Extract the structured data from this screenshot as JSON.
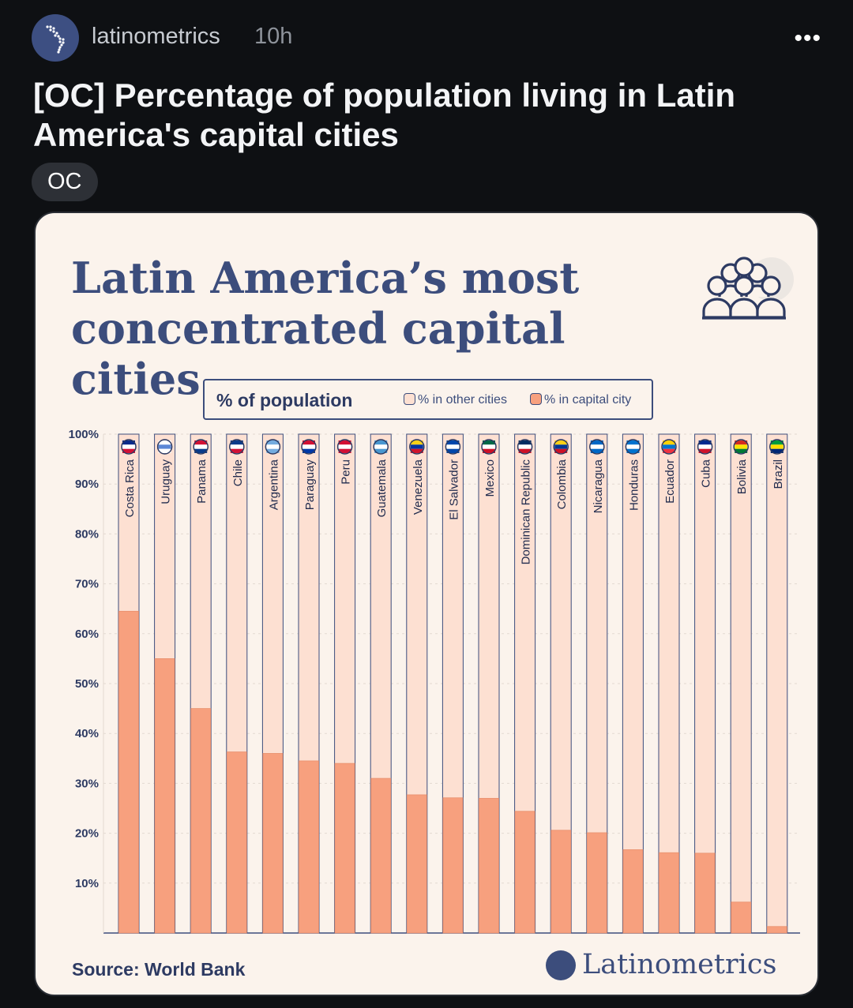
{
  "post": {
    "author": "latinometrics",
    "time": "10h",
    "menu_icon": "more-horizontal-icon",
    "more_label": "•••",
    "title": "[OC] Percentage of population living in Latin America's capital cities",
    "flair": "OC"
  },
  "infographic": {
    "title": "Latin America’s most concentrated capital cities",
    "icon": "people-group-icon",
    "legend": {
      "title": "% of population",
      "other_label": "% in other cities",
      "capital_label": "% in capital city"
    },
    "source": "Source: World Bank",
    "brand": "Latinometrics"
  },
  "colors": {
    "capital": "#f7a07e",
    "other": "#fde0d2",
    "navy": "#3c4d7c",
    "background": "#fbf3ec",
    "page": "#0e1013"
  },
  "chart_data": {
    "type": "bar",
    "stacked": true,
    "ylim": [
      0,
      100
    ],
    "ytick_labels": [
      "10%",
      "20%",
      "30%",
      "40%",
      "50%",
      "60%",
      "70%",
      "80%",
      "90%",
      "100%"
    ],
    "yticks": [
      10,
      20,
      30,
      40,
      50,
      60,
      70,
      80,
      90,
      100
    ],
    "categories": [
      "Costa Rica",
      "Uruguay",
      "Panama",
      "Chile",
      "Argentina",
      "Paraguay",
      "Peru",
      "Guatemala",
      "Venezuela",
      "El Salvador",
      "Mexico",
      "Dominican Republic",
      "Colombia",
      "Nicaragua",
      "Honduras",
      "Ecuador",
      "Cuba",
      "Bolivia",
      "Brazil"
    ],
    "series": [
      {
        "name": "% in capital city",
        "values": [
          64.5,
          55,
          45,
          36.3,
          36,
          34.5,
          34,
          31,
          27.7,
          27.1,
          27,
          24.4,
          20.6,
          20.1,
          16.7,
          16.1,
          16,
          6.2,
          1.3
        ]
      },
      {
        "name": "% in other cities",
        "values": [
          35.5,
          45,
          55,
          63.7,
          64,
          65.5,
          66,
          69,
          72.3,
          72.9,
          73,
          75.6,
          79.4,
          79.9,
          83.3,
          83.9,
          84,
          93.8,
          98.7
        ]
      }
    ],
    "flag_colors": [
      [
        "#0a2a8a",
        "#ffffff",
        "#d21034"
      ],
      [
        "#ffffff",
        "#5b87d6",
        "#ffffff"
      ],
      [
        "#d21034",
        "#ffffff",
        "#0a3a8a"
      ],
      [
        "#0a3a8a",
        "#ffffff",
        "#d21034"
      ],
      [
        "#74acdf",
        "#ffffff",
        "#74acdf"
      ],
      [
        "#d21034",
        "#ffffff",
        "#0038a8"
      ],
      [
        "#d21034",
        "#ffffff",
        "#d21034"
      ],
      [
        "#4997d0",
        "#ffffff",
        "#4997d0"
      ],
      [
        "#f7d117",
        "#0033a0",
        "#cf142b"
      ],
      [
        "#0047ab",
        "#ffffff",
        "#0047ab"
      ],
      [
        "#006847",
        "#ffffff",
        "#ce1126"
      ],
      [
        "#002d62",
        "#ffffff",
        "#ce1126"
      ],
      [
        "#fcd116",
        "#003893",
        "#ce1126"
      ],
      [
        "#0067c6",
        "#ffffff",
        "#0067c6"
      ],
      [
        "#0073cf",
        "#ffffff",
        "#0073cf"
      ],
      [
        "#ffd100",
        "#0072ce",
        "#ef3340"
      ],
      [
        "#002a8f",
        "#ffffff",
        "#cf142b"
      ],
      [
        "#d52b1e",
        "#f9e300",
        "#007934"
      ],
      [
        "#009c3b",
        "#ffdf00",
        "#002776"
      ]
    ]
  }
}
